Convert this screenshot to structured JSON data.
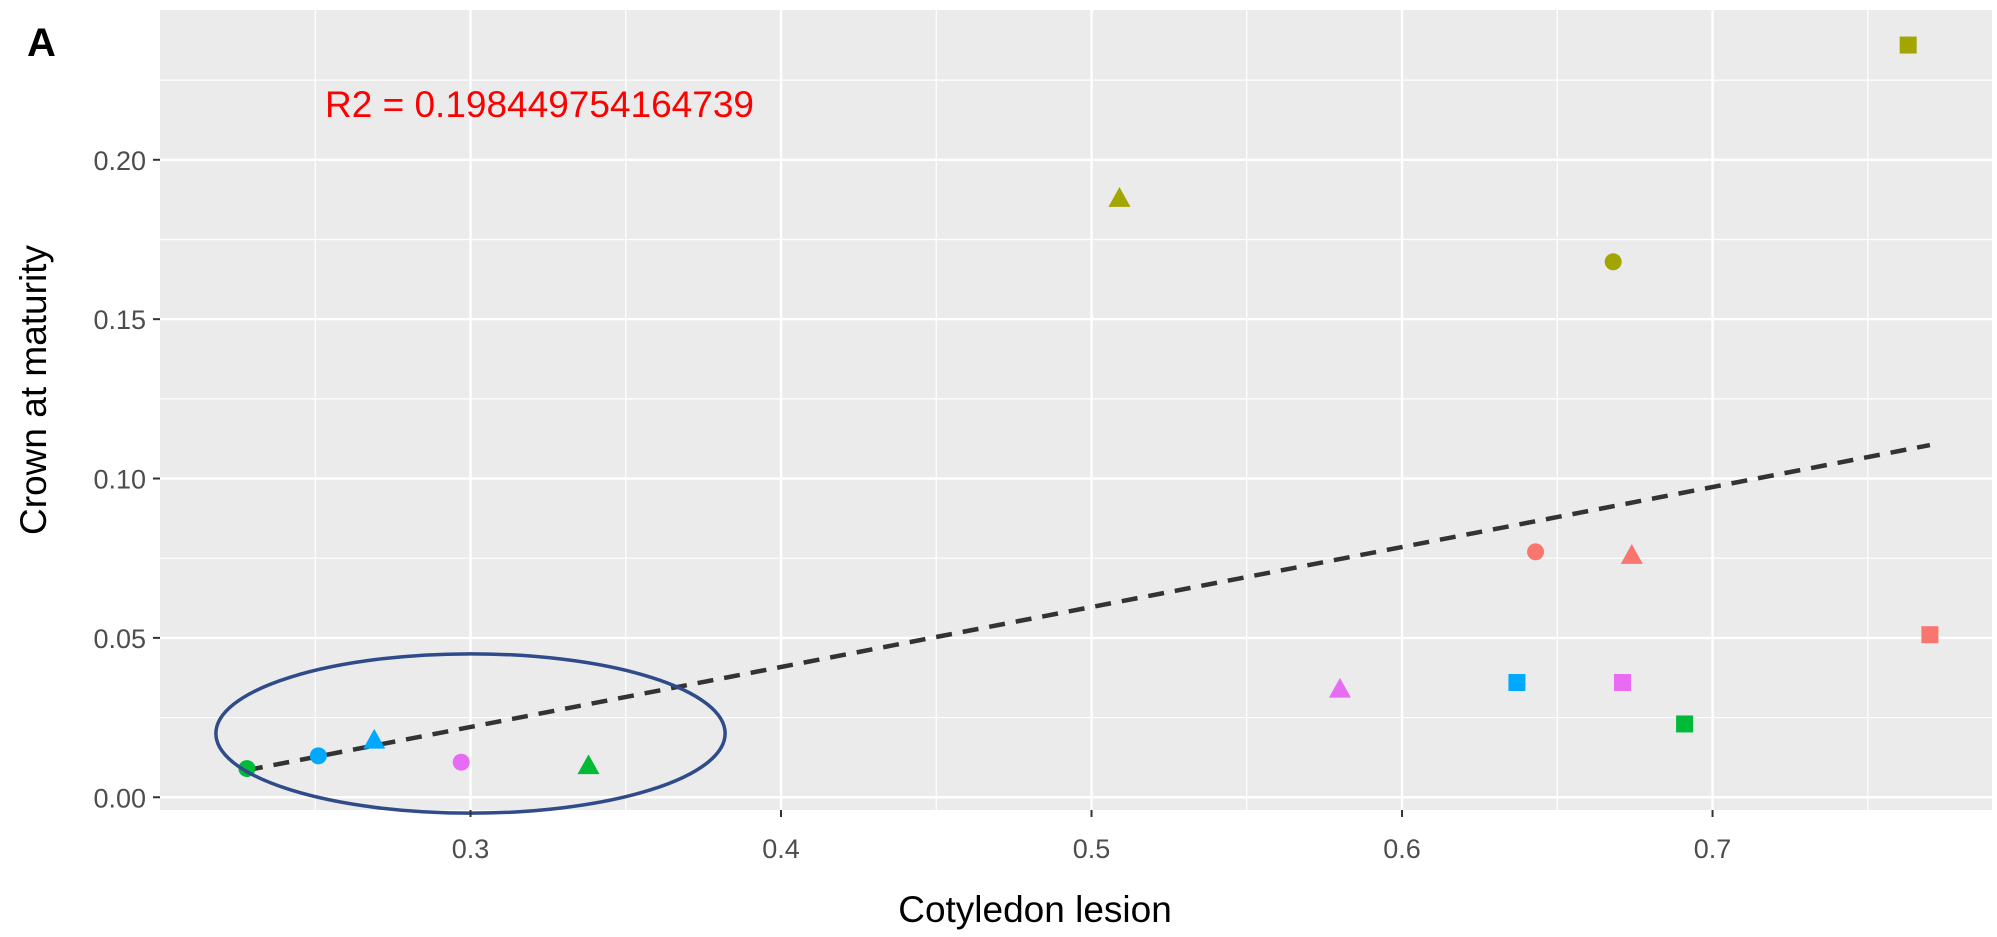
{
  "panel_label": "A",
  "chart_data": {
    "type": "scatter",
    "title": "",
    "xlabel": "Cotyledon lesion",
    "ylabel": "Crown at maturity",
    "xlim": [
      0.2,
      0.79
    ],
    "ylim": [
      -0.004,
      0.247
    ],
    "x_ticks": [
      0.3,
      0.4,
      0.5,
      0.6,
      0.7
    ],
    "x_tick_labels": [
      "0.3",
      "0.4",
      "0.5",
      "0.6",
      "0.7"
    ],
    "y_ticks": [
      0.0,
      0.05,
      0.1,
      0.15,
      0.2
    ],
    "y_tick_labels": [
      "0.00",
      "0.05",
      "0.10",
      "0.15",
      "0.20"
    ],
    "grid": true,
    "annotation": {
      "text": "R2 =  0.198449754164739",
      "color": "#ff0000"
    },
    "background_color": "#ebebeb",
    "points": [
      {
        "x": 0.228,
        "y": 0.009,
        "shape": "circle",
        "color": "#00ba38"
      },
      {
        "x": 0.251,
        "y": 0.013,
        "shape": "circle",
        "color": "#00a9ff"
      },
      {
        "x": 0.269,
        "y": 0.018,
        "shape": "triangle",
        "color": "#00a9ff"
      },
      {
        "x": 0.297,
        "y": 0.011,
        "shape": "circle",
        "color": "#e76bf3"
      },
      {
        "x": 0.338,
        "y": 0.01,
        "shape": "triangle",
        "color": "#00ba38"
      },
      {
        "x": 0.509,
        "y": 0.188,
        "shape": "triangle",
        "color": "#a3a500"
      },
      {
        "x": 0.58,
        "y": 0.034,
        "shape": "triangle",
        "color": "#e76bf3"
      },
      {
        "x": 0.637,
        "y": 0.036,
        "shape": "square",
        "color": "#00a9ff"
      },
      {
        "x": 0.643,
        "y": 0.077,
        "shape": "circle",
        "color": "#f8766d"
      },
      {
        "x": 0.668,
        "y": 0.168,
        "shape": "circle",
        "color": "#a3a500"
      },
      {
        "x": 0.671,
        "y": 0.036,
        "shape": "square",
        "color": "#e76bf3"
      },
      {
        "x": 0.674,
        "y": 0.076,
        "shape": "triangle",
        "color": "#f8766d"
      },
      {
        "x": 0.691,
        "y": 0.023,
        "shape": "square",
        "color": "#00ba38"
      },
      {
        "x": 0.763,
        "y": 0.236,
        "shape": "square",
        "color": "#a3a500"
      },
      {
        "x": 0.77,
        "y": 0.051,
        "shape": "square",
        "color": "#f8766d"
      }
    ],
    "trend_line": {
      "x": [
        0.228,
        0.77
      ],
      "y": [
        0.0085,
        0.1105
      ],
      "style": "dashed",
      "color": "#333333"
    },
    "highlight_ellipse": {
      "cx": 0.3,
      "cy": 0.02,
      "rx": 0.082,
      "ry": 0.025,
      "color": "#2f4b8a"
    }
  }
}
